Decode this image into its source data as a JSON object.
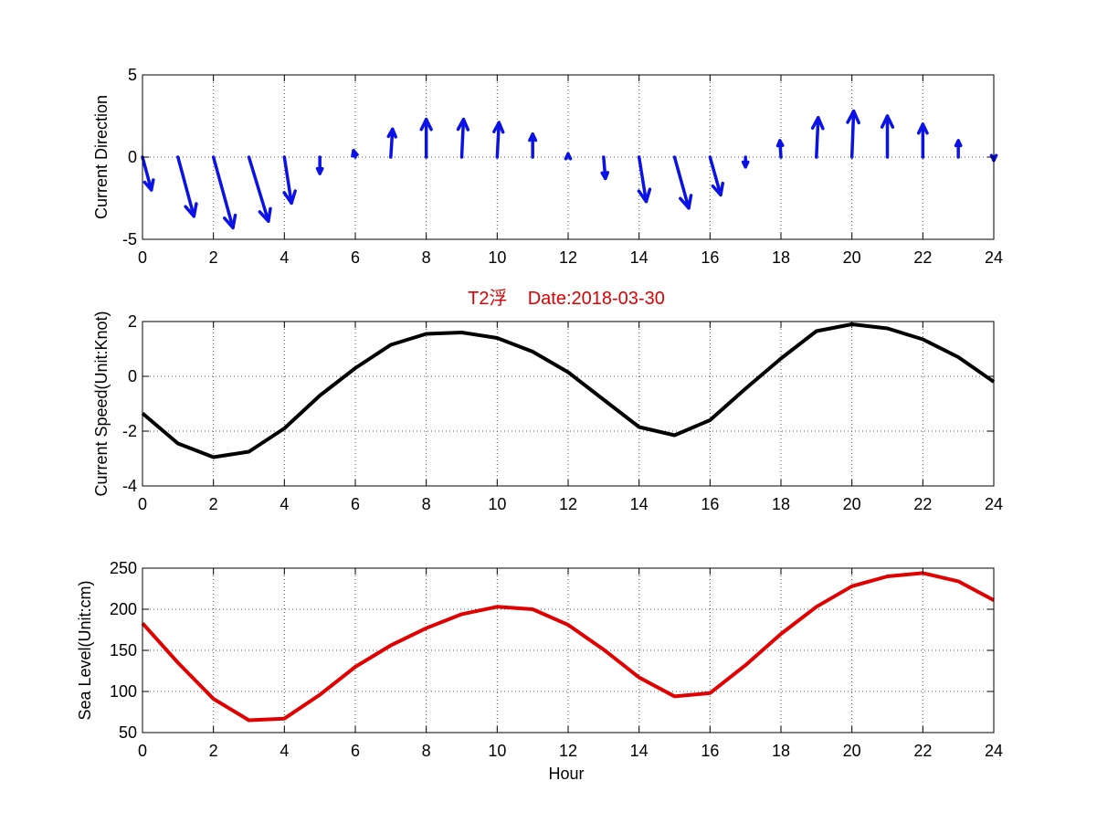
{
  "colors": {
    "direction": "#0a12e6",
    "speed": "#000000",
    "sealevel": "#e00000",
    "title": "#e00000",
    "grid": "#555555",
    "axis": "#000000"
  },
  "chart_data": [
    {
      "id": "direction",
      "type": "quiver",
      "title": "",
      "xlabel": "",
      "ylabel": "Current Direction",
      "xlim": [
        0,
        24
      ],
      "ylim": [
        -5,
        5
      ],
      "xticks": [
        0,
        2,
        4,
        6,
        8,
        10,
        12,
        14,
        16,
        18,
        20,
        22,
        24
      ],
      "yticks": [
        -5,
        0,
        5
      ],
      "grid": true,
      "series": [
        {
          "x": [
            0,
            1,
            2,
            3,
            4,
            5,
            6,
            7,
            8,
            9,
            10,
            11,
            12,
            13,
            14,
            15,
            16,
            17,
            18,
            19,
            20,
            21,
            22,
            23,
            24
          ],
          "u": [
            0.25,
            0.45,
            0.55,
            0.55,
            0.2,
            0.0,
            -0.05,
            0.05,
            0.0,
            0.05,
            0.05,
            0.0,
            0.0,
            0.05,
            0.2,
            0.4,
            0.3,
            0.0,
            -0.03,
            0.05,
            0.05,
            0.0,
            0.0,
            0.0,
            0.0
          ],
          "v": [
            -2.0,
            -3.6,
            -4.3,
            -3.9,
            -2.8,
            -1.0,
            0.4,
            1.7,
            2.3,
            2.3,
            2.1,
            1.4,
            0.2,
            -1.3,
            -2.7,
            -3.1,
            -2.3,
            -0.6,
            1.0,
            2.4,
            2.8,
            2.5,
            2.0,
            1.0,
            -0.2
          ]
        }
      ]
    },
    {
      "id": "speed",
      "type": "line",
      "title": "T2浮    Date:2018-03-30",
      "xlabel": "",
      "ylabel": "Current Speed(Unit:Knot)",
      "xlim": [
        0,
        24
      ],
      "ylim": [
        -4,
        2
      ],
      "xticks": [
        0,
        2,
        4,
        6,
        8,
        10,
        12,
        14,
        16,
        18,
        20,
        22,
        24
      ],
      "yticks": [
        -4,
        -2,
        0,
        2
      ],
      "grid": true,
      "series": [
        {
          "x": [
            0,
            1,
            2,
            3,
            4,
            5,
            6,
            7,
            8,
            9,
            10,
            11,
            12,
            13,
            14,
            15,
            16,
            17,
            18,
            19,
            20,
            21,
            22,
            23,
            24
          ],
          "y": [
            -1.35,
            -2.45,
            -2.95,
            -2.75,
            -1.9,
            -0.7,
            0.3,
            1.15,
            1.55,
            1.6,
            1.4,
            0.9,
            0.15,
            -0.85,
            -1.85,
            -2.15,
            -1.6,
            -0.45,
            0.65,
            1.65,
            1.9,
            1.75,
            1.35,
            0.7,
            -0.2
          ]
        }
      ]
    },
    {
      "id": "sealevel",
      "type": "line",
      "title": "",
      "xlabel": "Hour",
      "ylabel": "Sea Level(Unit:cm)",
      "xlim": [
        0,
        24
      ],
      "ylim": [
        50,
        250
      ],
      "xticks": [
        0,
        2,
        4,
        6,
        8,
        10,
        12,
        14,
        16,
        18,
        20,
        22,
        24
      ],
      "yticks": [
        50,
        100,
        150,
        200,
        250
      ],
      "grid": true,
      "series": [
        {
          "x": [
            0,
            1,
            2,
            3,
            4,
            5,
            6,
            7,
            8,
            9,
            10,
            11,
            12,
            13,
            14,
            15,
            16,
            17,
            18,
            19,
            20,
            21,
            22,
            23,
            24
          ],
          "y": [
            183,
            135,
            91,
            65,
            67,
            96,
            130,
            156,
            177,
            194,
            203,
            200,
            181,
            151,
            117,
            94,
            98,
            132,
            170,
            203,
            228,
            240,
            244,
            234,
            211
          ]
        }
      ]
    }
  ]
}
